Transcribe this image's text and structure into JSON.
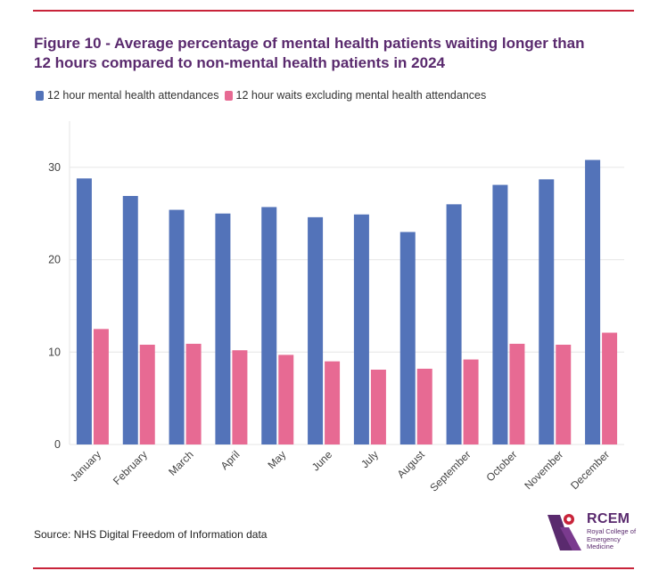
{
  "title": "Figure 10 - Average percentage of mental health patients waiting longer than 12 hours compared  to non-mental health patients in 2024",
  "source_note": "Source: NHS Digital Freedom of Information data",
  "logo": {
    "name": "RCEM",
    "subtitle": "Royal College of Emergency Medicine"
  },
  "colors": {
    "series1": "#5373b9",
    "series2": "#e76a93",
    "title": "#5a2a6e",
    "rule": "#c8243a"
  },
  "chart_data": {
    "type": "bar",
    "title": "Figure 10 - Average percentage of mental health patients waiting longer than 12 hours compared  to non-mental health patients in 2024",
    "xlabel": "",
    "ylabel": "",
    "ylim": [
      0,
      35
    ],
    "yticks": [
      0,
      10,
      20,
      30
    ],
    "grid": true,
    "legend_position": "top-left",
    "categories": [
      "January",
      "February",
      "March",
      "April",
      "May",
      "June",
      "July",
      "August",
      "September",
      "October",
      "November",
      "December"
    ],
    "series": [
      {
        "name": "12 hour mental health attendances",
        "color": "#5373b9",
        "values": [
          28.8,
          26.9,
          25.4,
          25.0,
          25.7,
          24.6,
          24.9,
          23.0,
          26.0,
          28.1,
          28.7,
          30.8
        ]
      },
      {
        "name": "12 hour waits excluding mental health attendances",
        "color": "#e76a93",
        "values": [
          12.5,
          10.8,
          10.9,
          10.2,
          9.7,
          9.0,
          8.1,
          8.2,
          9.2,
          10.9,
          10.8,
          12.1
        ]
      }
    ]
  }
}
